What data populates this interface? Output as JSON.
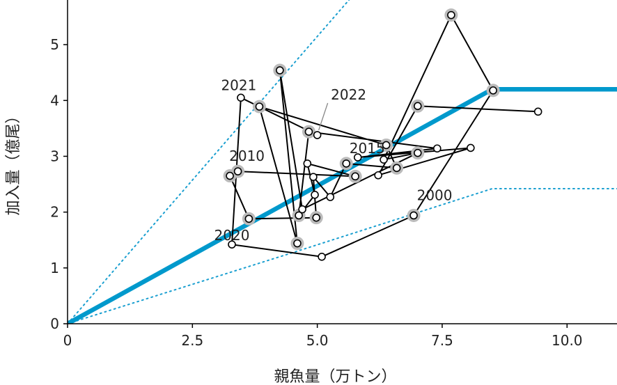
{
  "chart_data": {
    "type": "scatter",
    "xlabel": "親魚量（万トン）",
    "ylabel": "加入量（億尾）",
    "xlim": [
      0,
      11
    ],
    "ylim": [
      0,
      5.8
    ],
    "x_ticks": [
      {
        "value": 0,
        "label": "0"
      },
      {
        "value": 2.5,
        "label": "2.5"
      },
      {
        "value": 5.0,
        "label": "5.0"
      },
      {
        "value": 7.5,
        "label": "7.5"
      },
      {
        "value": 10.0,
        "label": "10.0"
      }
    ],
    "y_ticks": [
      {
        "value": 0,
        "label": "0"
      },
      {
        "value": 1,
        "label": "1"
      },
      {
        "value": 2,
        "label": "2"
      },
      {
        "value": 3,
        "label": "3"
      },
      {
        "value": 4,
        "label": "4"
      },
      {
        "value": 5,
        "label": "5"
      }
    ],
    "colors": {
      "model_line": "#0099cc",
      "confidence_band": "#1a9fd0",
      "trajectory": "#000000",
      "highlight": "#bbbbbb"
    },
    "model_curve": {
      "style": "hockey-stick",
      "points": [
        [
          0,
          0
        ],
        [
          8.5,
          4.2
        ],
        [
          11,
          4.2
        ]
      ]
    },
    "upper_band": {
      "style": "dotted",
      "points": [
        [
          0,
          0
        ],
        [
          6.8,
          7.0
        ]
      ]
    },
    "lower_band": {
      "style": "dotted",
      "points": [
        [
          0,
          0
        ],
        [
          4.6,
          1.3
        ],
        [
          8.5,
          2.42
        ],
        [
          11,
          2.42
        ]
      ]
    },
    "trajectory": [
      {
        "x": 9.42,
        "y": 3.8,
        "h": false
      },
      {
        "x": 7.01,
        "y": 3.9,
        "h": true
      },
      {
        "x": 6.22,
        "y": 2.66,
        "h": false
      },
      {
        "x": 8.07,
        "y": 3.15,
        "h": false
      },
      {
        "x": 5.81,
        "y": 2.98,
        "h": false
      },
      {
        "x": 7.4,
        "y": 3.14,
        "h": false
      },
      {
        "x": 4.83,
        "y": 3.44,
        "h": true
      },
      {
        "x": 4.63,
        "y": 1.94,
        "h": true
      },
      {
        "x": 4.95,
        "y": 2.31,
        "h": false
      },
      {
        "x": 4.8,
        "y": 2.87,
        "h": false
      },
      {
        "x": 5.76,
        "y": 2.64,
        "h": true
      },
      {
        "x": 3.41,
        "y": 2.73,
        "h": true
      },
      {
        "x": 3.25,
        "y": 2.65,
        "h": true
      },
      {
        "x": 3.63,
        "y": 1.88,
        "h": true
      },
      {
        "x": 4.98,
        "y": 1.9,
        "h": true
      },
      {
        "x": 4.92,
        "y": 2.63,
        "h": false
      },
      {
        "x": 5.26,
        "y": 2.27,
        "h": false
      },
      {
        "x": 5.58,
        "y": 2.87,
        "h": true
      },
      {
        "x": 6.59,
        "y": 2.79,
        "h": true
      },
      {
        "x": 6.38,
        "y": 3.2,
        "h": true
      },
      {
        "x": 3.84,
        "y": 3.89,
        "h": true
      },
      {
        "x": 4.6,
        "y": 1.44,
        "h": true
      },
      {
        "x": 4.25,
        "y": 4.54,
        "h": true
      },
      {
        "x": 4.7,
        "y": 2.05,
        "h": false
      },
      {
        "x": 7.01,
        "y": 3.06,
        "h": true
      },
      {
        "x": 6.33,
        "y": 2.94,
        "h": false
      },
      {
        "x": 7.68,
        "y": 5.53,
        "h": true
      },
      {
        "x": 8.52,
        "y": 4.18,
        "h": true
      },
      {
        "x": 6.93,
        "y": 1.94,
        "h": true
      },
      {
        "x": 5.09,
        "y": 1.2,
        "h": false
      },
      {
        "x": 3.29,
        "y": 1.42,
        "h": false
      },
      {
        "x": 3.47,
        "y": 4.05,
        "h": false
      },
      {
        "x": 5.0,
        "y": 3.38,
        "h": false
      }
    ],
    "annotations": [
      {
        "text": "2000",
        "x": 6.93,
        "y": 1.94
      },
      {
        "text": "2010",
        "x": 3.41,
        "y": 2.73
      },
      {
        "text": "2015",
        "x": 5.58,
        "y": 2.87
      },
      {
        "text": "2020",
        "x": 3.29,
        "y": 1.42
      },
      {
        "text": "2021",
        "x": 3.47,
        "y": 4.05
      },
      {
        "text": "2022",
        "x": 5.0,
        "y": 3.38
      }
    ]
  }
}
